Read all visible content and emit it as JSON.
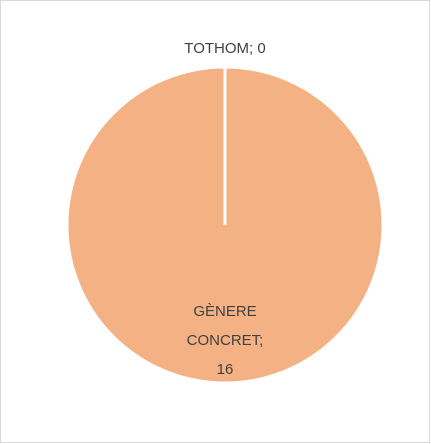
{
  "chart_data": {
    "type": "pie",
    "values": [
      16,
      0
    ],
    "value_labels": [
      "GÈNERE CONCRET; 16",
      "TOTHOM; 0"
    ],
    "colors": [
      "#f4b183",
      "#f4b183"
    ]
  }
}
